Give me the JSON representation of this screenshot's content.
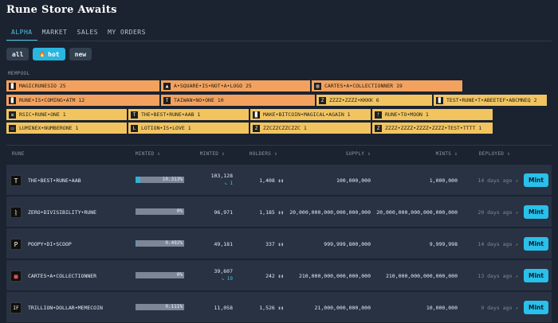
{
  "app_title": "Rune Store Awaits",
  "nav": {
    "tabs": [
      {
        "label": "ALPHA",
        "active": true
      },
      {
        "label": "MARKET",
        "active": false
      },
      {
        "label": "SALES",
        "active": false
      },
      {
        "label": "MY ORDERS",
        "active": false
      }
    ]
  },
  "filters": [
    {
      "label": "all",
      "icon": "",
      "active": false
    },
    {
      "label": "hot",
      "icon": "fire-icon",
      "icon_glyph": "🔥",
      "active": true
    },
    {
      "label": "new",
      "icon": "",
      "active": false
    }
  ],
  "mempool": {
    "label": "MEMPOOL",
    "cells": [
      {
        "glyph": "▉",
        "text": "MAGICRUNESIO 25",
        "color": "#f2a25e"
      },
      {
        "glyph": "▲",
        "text": "A•SQUARE•IS•NOT•A•LOGO 25",
        "color": "#f2a25e"
      },
      {
        "glyph": "▤",
        "text": "CARTES•A•COLLECTIONNER 19",
        "color": "#f2a25e"
      },
      {
        "glyph": "▉",
        "text": "RUNE•IS•COMING•ATM 12",
        "color": "#f2a25e"
      },
      {
        "glyph": "T",
        "text": "TAIWAN•NO•ONE 10",
        "color": "#f2a25e"
      },
      {
        "glyph": "Z",
        "text": "ZZZZ•ZZZZ•KKKK 6",
        "color": "#f2c460"
      },
      {
        "glyph": "▉",
        "text": "TEST•RUNE•T•ABEETEF•ABCMNEQ 2",
        "color": "#f2c460"
      },
      {
        "glyph": "≡",
        "text": "RSIC•RUNE•ONE 1",
        "color": "#f2c460"
      },
      {
        "glyph": "T",
        "text": "THE•BEST•RUNE•AAB 1",
        "color": "#f2c460"
      },
      {
        "glyph": "▉",
        "text": "MAKE•BITCOIN•MAGICAL•AGAIN 1",
        "color": "#f2c460"
      },
      {
        "glyph": "ᚠ",
        "text": "RUNE•TO•MOON 1",
        "color": "#f2c460"
      },
      {
        "glyph": "▭",
        "text": "LUMINEX•NUMBERONE 1",
        "color": "#f2c460"
      },
      {
        "glyph": "L",
        "text": "LOTION•IS•LOVE 1",
        "color": "#f2c460"
      },
      {
        "glyph": "Z",
        "text": "ZZCZZCZZCZZC 1",
        "color": "#f2c460"
      },
      {
        "glyph": "Z",
        "text": "ZZZZ•ZZZZ•ZZZZ•ZZZZ•TEST•TTTT 1",
        "color": "#f2c460"
      }
    ]
  },
  "table": {
    "headers": {
      "rune": "RUNE",
      "minted_pct": "MINTED ⇕",
      "minted": "MINTED ⇕",
      "holders": "HOLDERS ⇕",
      "supply": "SUPPLY ⇕",
      "mints": "MINTS ⇕",
      "deployed": "DEPLOYED ⇕"
    },
    "rows": [
      {
        "icon": "T",
        "name": "THE•BEST•RUNE•AAB",
        "pct": "10.313%",
        "pct_value": 10.313,
        "minted": "103,128",
        "minted_sub": "↘ 1",
        "holders": "1,408",
        "supply": "100,000,000",
        "mints": "1,000,000",
        "deployed": "14 days ago"
      },
      {
        "icon": "ᚱ",
        "name": "ZERO•DIVISIBILITY•RUNE",
        "pct": "0%",
        "pct_value": 0,
        "minted": "96,971",
        "minted_sub": "",
        "holders": "1,185",
        "supply": "20,000,000,000,000,000,000",
        "mints": "20,000,000,000,000,000,000",
        "deployed": "20 days ago"
      },
      {
        "icon": "P",
        "name": "POOPY•DI•SCOOP",
        "pct": "0.492%",
        "pct_value": 0.492,
        "minted": "49,181",
        "minted_sub": "",
        "holders": "337",
        "supply": "999,999,800,000",
        "mints": "9,999,998",
        "deployed": "14 days ago"
      },
      {
        "icon": "■",
        "name": "CARTES•A•COLLECTIONNER",
        "pct": "0%",
        "pct_value": 0,
        "minted": "39,607",
        "minted_sub": "↘ 19",
        "holders": "242",
        "supply": "210,000,000,000,000,000",
        "mints": "210,000,000,000,000,000",
        "deployed": "13 days ago"
      },
      {
        "icon": "IF",
        "name": "TRILLION•DOLLAR•MEMECOIN",
        "pct": "0.111%",
        "pct_value": 0.111,
        "minted": "11,058",
        "minted_sub": "",
        "holders": "1,526",
        "supply": "21,000,000,000,000",
        "mints": "10,000,000",
        "deployed": "9 days ago"
      }
    ],
    "mint_label": "Mint"
  }
}
